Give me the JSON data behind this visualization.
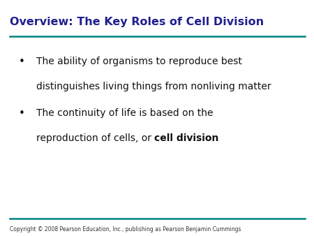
{
  "title": "Overview: The Key Roles of Cell Division",
  "title_color": "#1F1F8F",
  "title_fontsize": 11.5,
  "line_color": "#008080",
  "bullet1_line1": "The ability of organisms to reproduce best",
  "bullet1_line2": "distinguishes living things from nonliving matter",
  "bullet2_line1": "The continuity of life is based on the",
  "bullet2_line2_normal": "reproduction of cells, or ",
  "bullet2_line2_bold": "cell division",
  "bullet_fontsize": 10.0,
  "bullet_color": "#111111",
  "copyright": "Copyright © 2008 Pearson Education, Inc., publishing as Pearson Benjamin Cummings",
  "copyright_fontsize": 5.5,
  "background_color": "#ffffff",
  "line_lw": 1.8
}
